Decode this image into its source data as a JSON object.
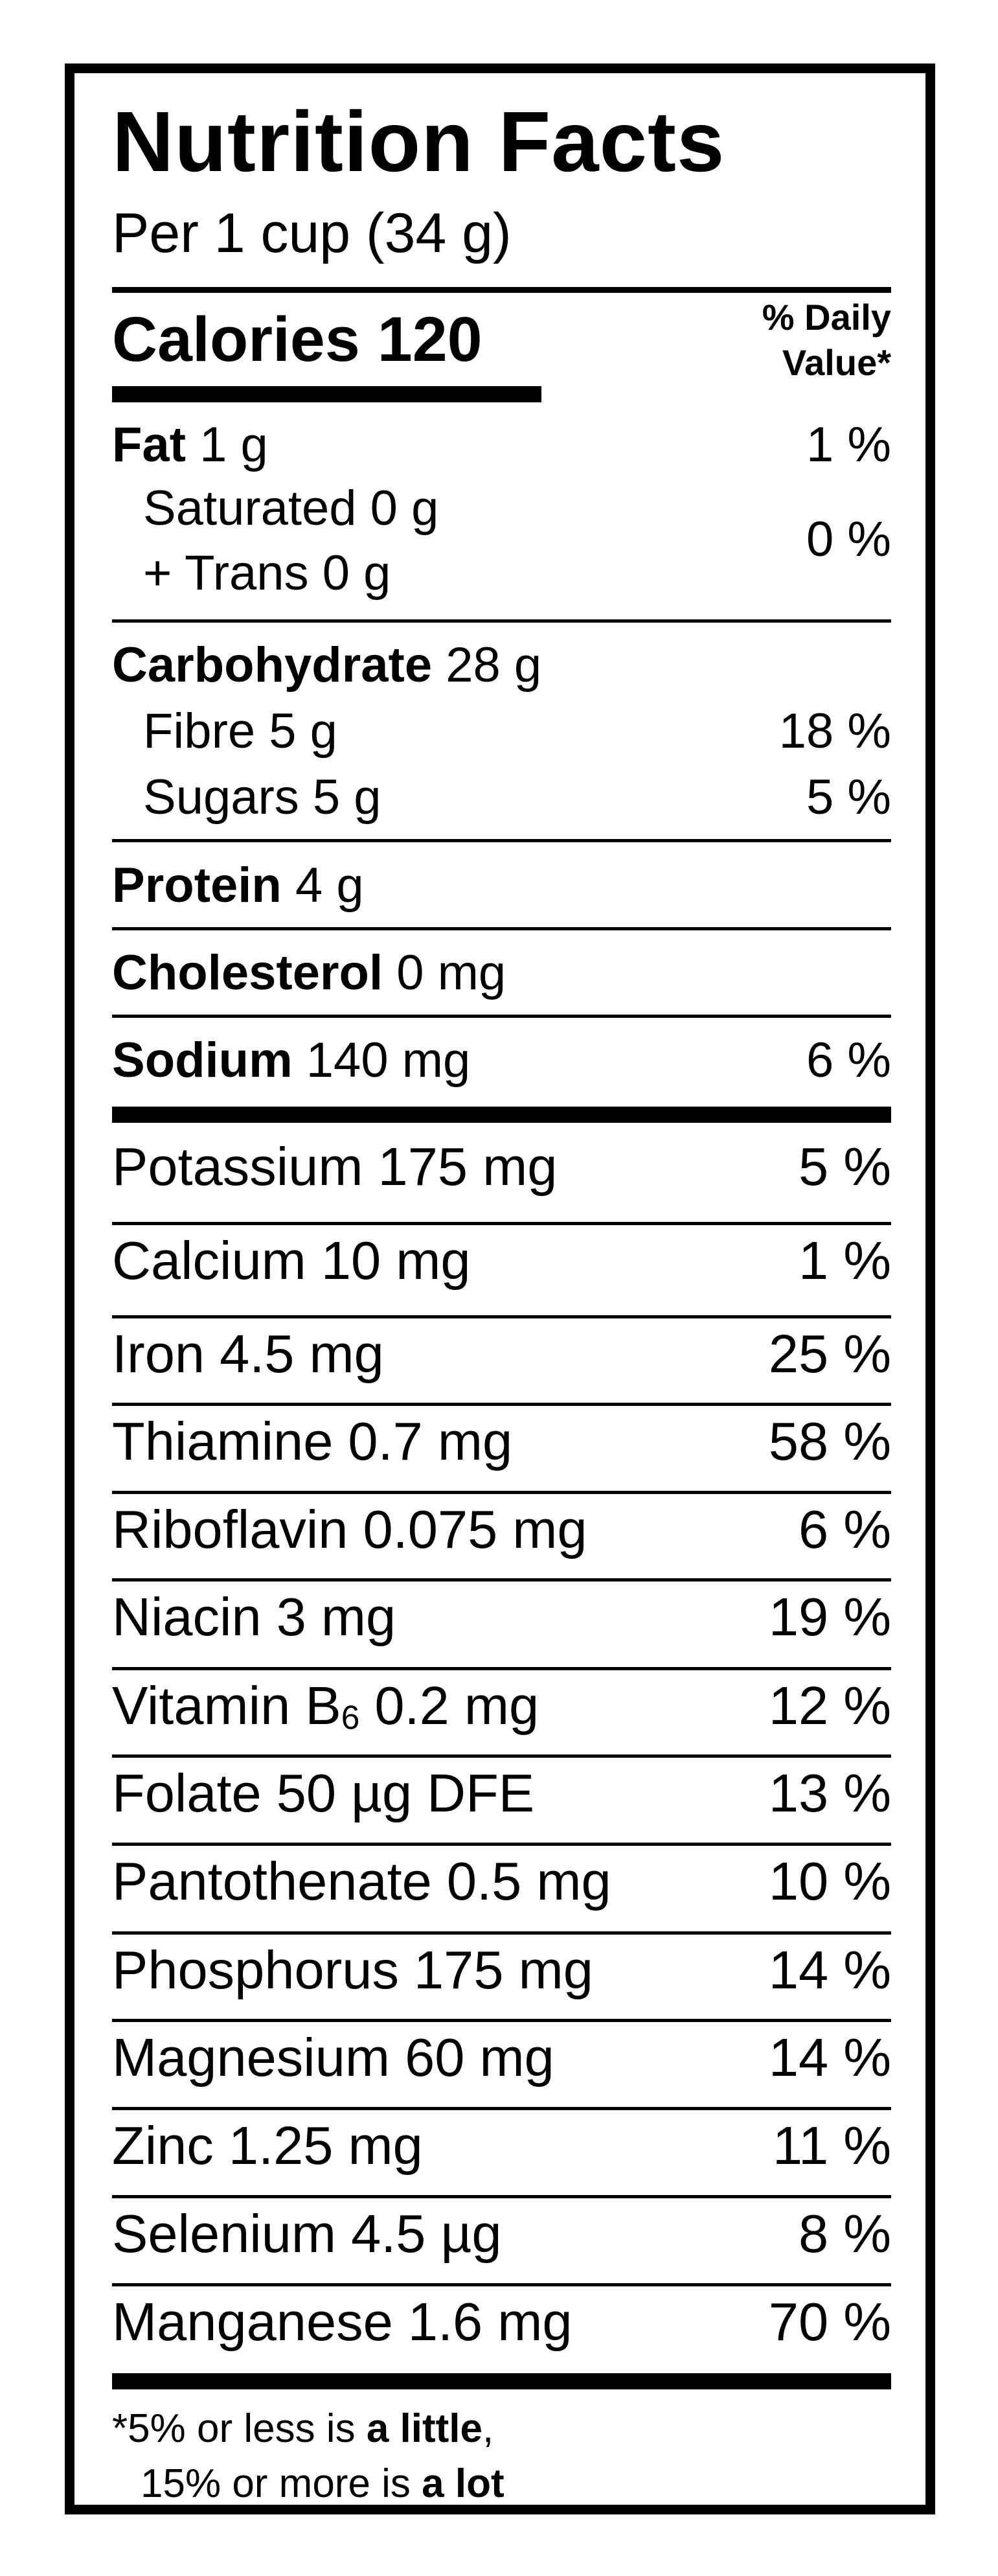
{
  "label": {
    "title": "Nutrition Facts",
    "serving": "Per 1 cup (34 g)",
    "calories_label": "Calories",
    "calories_value": "120",
    "dv_header_line1": "% Daily",
    "dv_header_line2": "Value*"
  },
  "nutrients": {
    "fat": {
      "name": "Fat",
      "amount": "1 g",
      "dv": "1 %"
    },
    "saturated": {
      "text": "Saturated 0 g"
    },
    "trans": {
      "text": "+ Trans 0 g"
    },
    "sat_trans_dv": "0 %",
    "carbohydrate": {
      "name": "Carbohydrate",
      "amount": "28 g"
    },
    "fibre": {
      "text": "Fibre 5 g",
      "dv": "18 %"
    },
    "sugars": {
      "text": "Sugars 5 g",
      "dv": "5 %"
    },
    "protein": {
      "name": "Protein",
      "amount": "4 g"
    },
    "cholesterol": {
      "name": "Cholesterol",
      "amount": "0 mg"
    },
    "sodium": {
      "name": "Sodium",
      "amount": "140 mg",
      "dv": "6 %"
    }
  },
  "micronutrients": [
    {
      "text": "Potassium 175 mg",
      "dv": "5 %"
    },
    {
      "text": "Calcium 10 mg",
      "dv": "1 %"
    },
    {
      "text": "Iron 4.5 mg",
      "dv": "25 %"
    },
    {
      "text": "Thiamine 0.7 mg",
      "dv": "58 %"
    },
    {
      "text": "Riboflavin 0.075 mg",
      "dv": "6 %"
    },
    {
      "text": "Niacin 3 mg",
      "dv": "19 %"
    },
    {
      "name": "Vitamin B",
      "sub": "6",
      "amount": " 0.2 mg",
      "dv": "12 %"
    },
    {
      "text": "Folate 50 µg DFE",
      "dv": "13 %"
    },
    {
      "text": "Pantothenate 0.5 mg",
      "dv": "10 %"
    },
    {
      "text": "Phosphorus 175 mg",
      "dv": "14 %"
    },
    {
      "text": "Magnesium 60 mg",
      "dv": "14 %"
    },
    {
      "text": "Zinc 1.25 mg",
      "dv": "11 %"
    },
    {
      "text": "Selenium 4.5 µg",
      "dv": "8 %"
    },
    {
      "text": "Manganese 1.6 mg",
      "dv": "70 %"
    }
  ],
  "footnote": {
    "line1_prefix": "*5% or less is ",
    "line1_bold": "a little",
    "line1_suffix": ",",
    "line2_prefix": "15% or more is ",
    "line2_bold": "a lot"
  }
}
